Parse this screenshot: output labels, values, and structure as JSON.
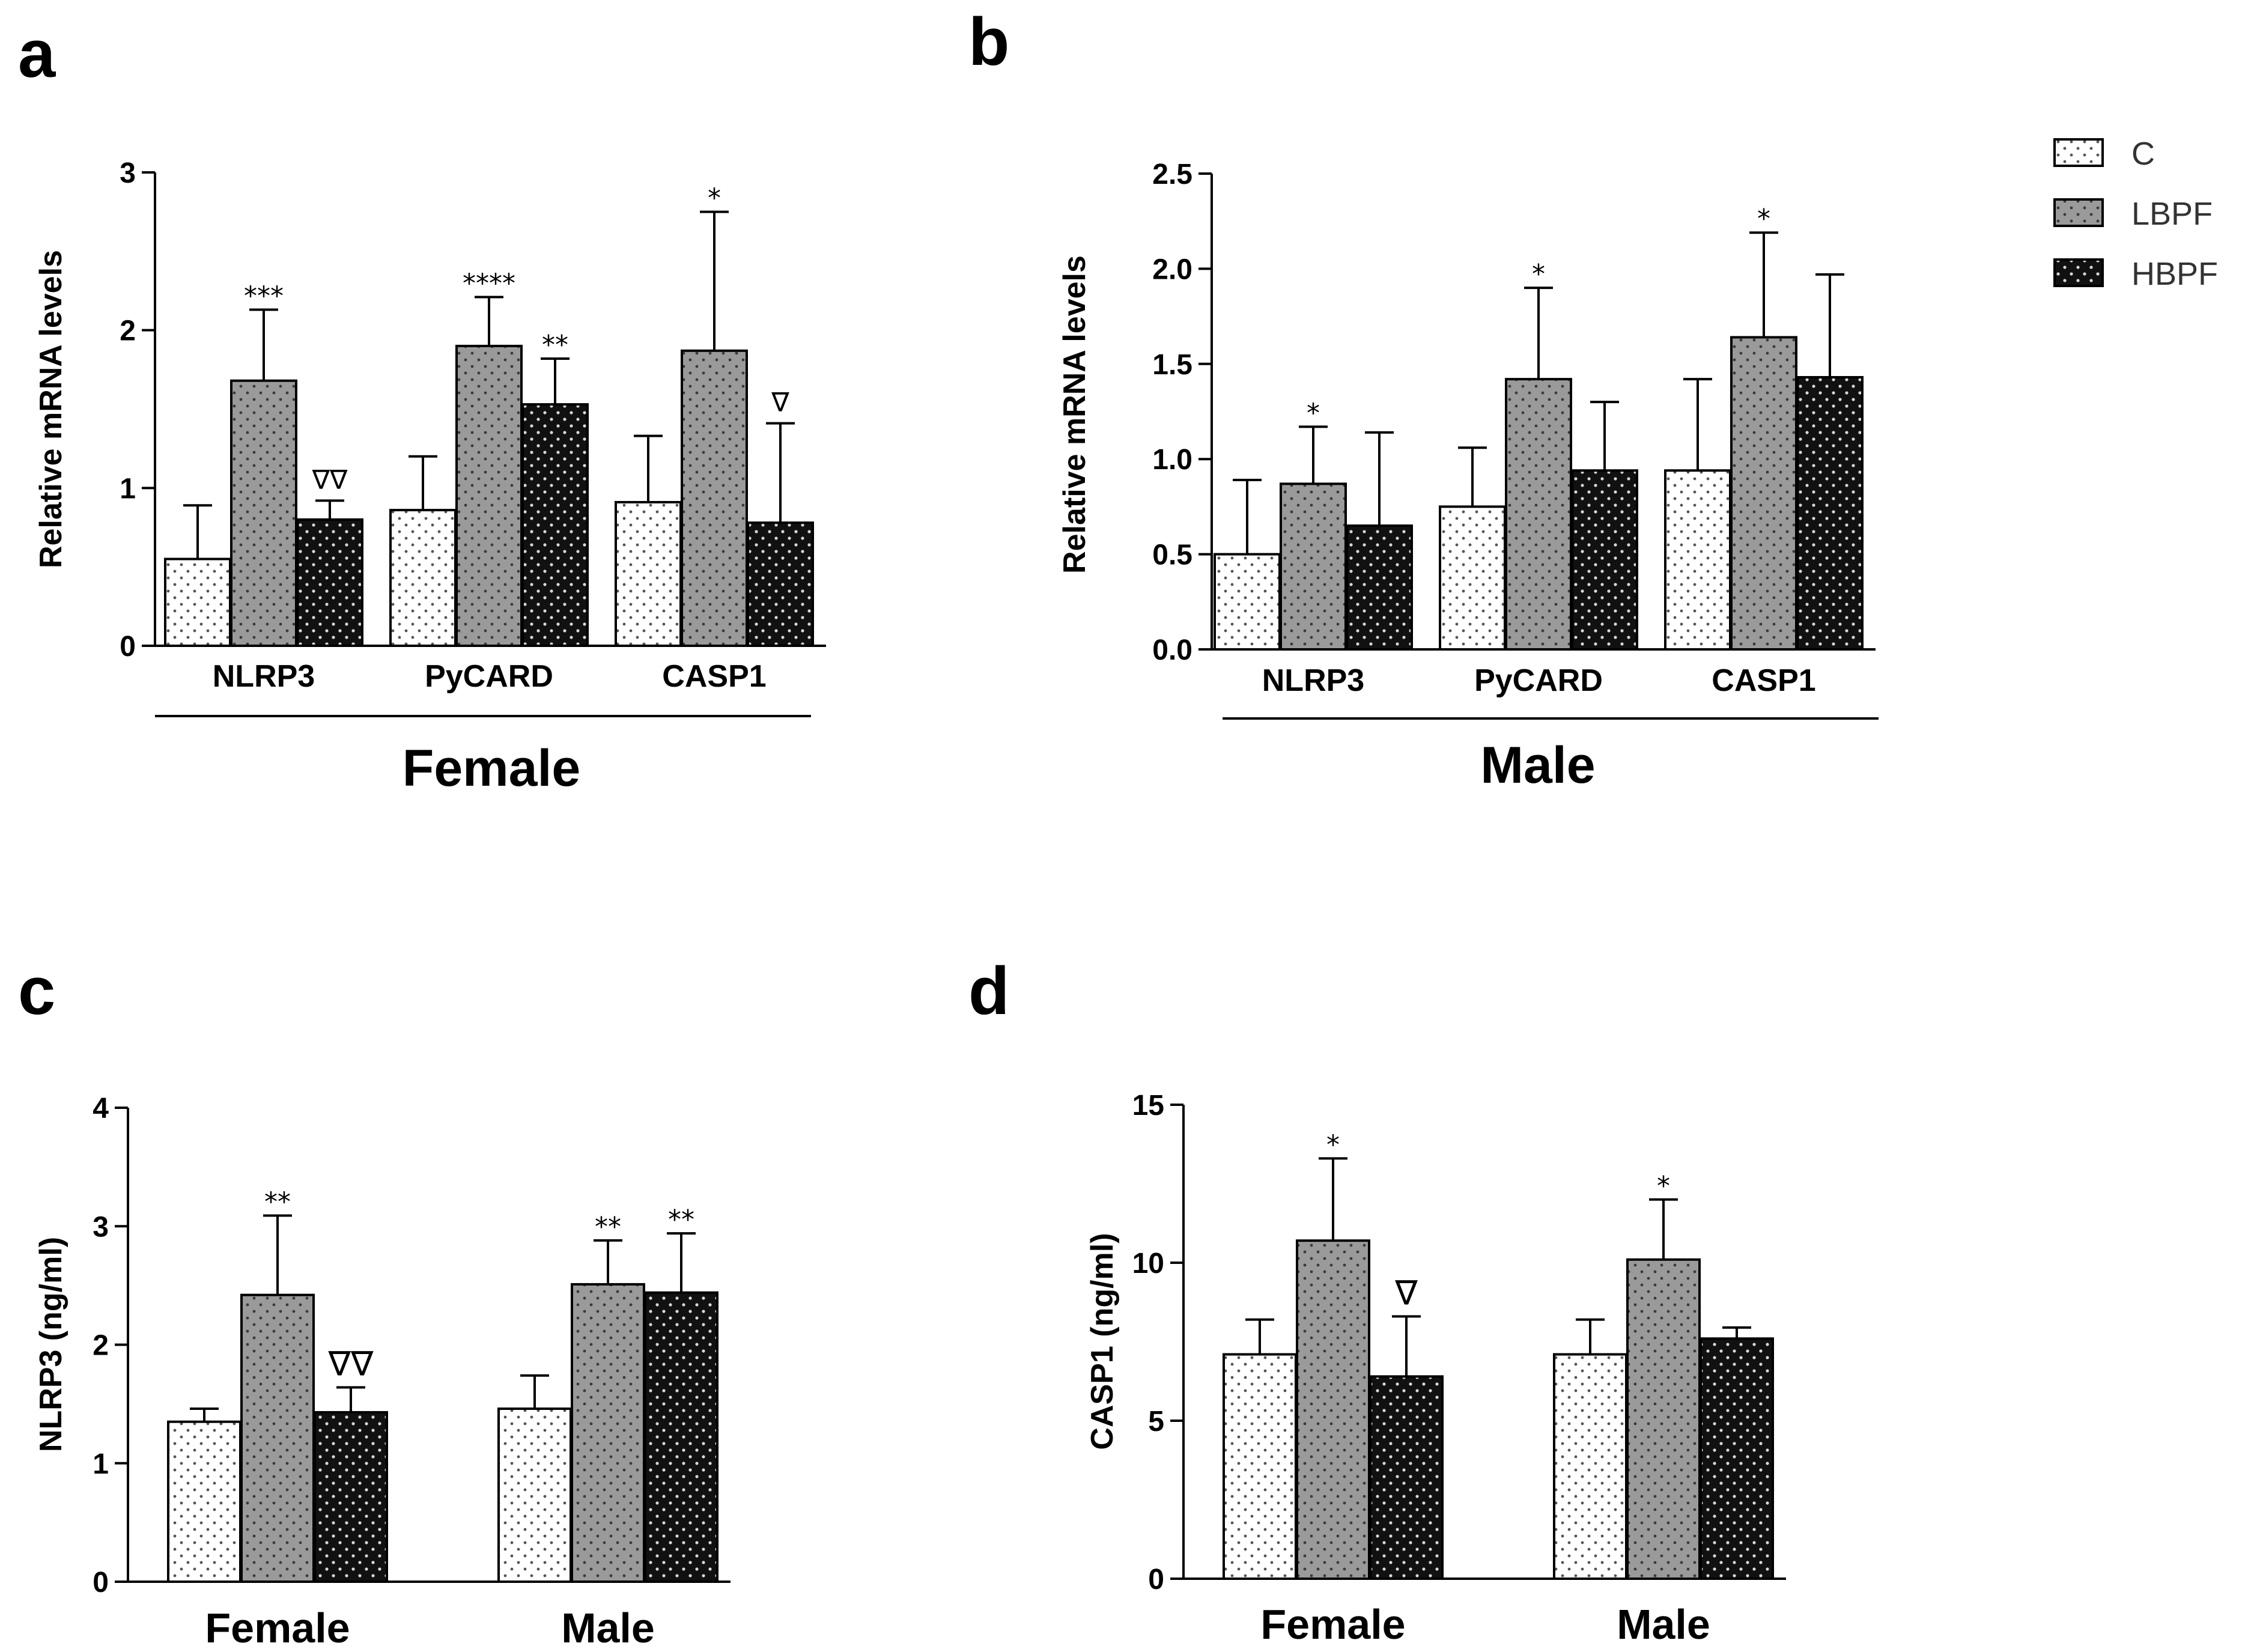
{
  "legend": [
    {
      "key": "C",
      "label": "C"
    },
    {
      "key": "LBPF",
      "label": "LBPF"
    },
    {
      "key": "HBPF",
      "label": "HBPF"
    }
  ],
  "chart_data": [
    {
      "panel": "a",
      "type": "bar",
      "ylabel": "Relative mRNA levels",
      "ylim": [
        0,
        3
      ],
      "yticks": [
        "0",
        "1",
        "2",
        "3"
      ],
      "yticks_values": [
        0,
        1,
        2,
        3
      ],
      "categories": [
        "NLRP3",
        "PyCARD",
        "CASP1"
      ],
      "group_label": "Female",
      "series": [
        {
          "name": "C",
          "values": [
            0.55,
            0.86,
            0.91
          ],
          "errors": [
            0.34,
            0.34,
            0.42
          ],
          "sig": [
            "",
            "",
            ""
          ]
        },
        {
          "name": "LBPF",
          "values": [
            1.68,
            1.9,
            1.87
          ],
          "errors": [
            0.45,
            0.31,
            0.88
          ],
          "sig": [
            "***",
            "****",
            "*"
          ]
        },
        {
          "name": "HBPF",
          "values": [
            0.8,
            1.53,
            0.78
          ],
          "errors": [
            0.12,
            0.29,
            0.63
          ],
          "sig": [
            "∇∇",
            "**",
            "∇"
          ]
        }
      ]
    },
    {
      "panel": "b",
      "type": "bar",
      "ylabel": "Relative mRNA levels",
      "ylim": [
        0,
        2.5
      ],
      "yticks": [
        "0.0",
        "0.5",
        "1.0",
        "1.5",
        "2.0",
        "2.5"
      ],
      "yticks_values": [
        0,
        0.5,
        1,
        1.5,
        2,
        2.5
      ],
      "categories": [
        "NLRP3",
        "PyCARD",
        "CASP1"
      ],
      "group_label": "Male",
      "series": [
        {
          "name": "C",
          "values": [
            0.5,
            0.75,
            0.94
          ],
          "errors": [
            0.39,
            0.31,
            0.48
          ],
          "sig": [
            "",
            "",
            ""
          ]
        },
        {
          "name": "LBPF",
          "values": [
            0.87,
            1.42,
            1.64
          ],
          "errors": [
            0.3,
            0.48,
            0.55
          ],
          "sig": [
            "*",
            "*",
            "*"
          ]
        },
        {
          "name": "HBPF",
          "values": [
            0.65,
            0.94,
            1.43
          ],
          "errors": [
            0.49,
            0.36,
            0.54
          ],
          "sig": [
            "",
            "",
            ""
          ]
        }
      ]
    },
    {
      "panel": "c",
      "type": "bar",
      "ylabel": "NLRP3 (ng/ml)",
      "ylim": [
        0,
        4
      ],
      "yticks": [
        "0",
        "1",
        "2",
        "3",
        "4"
      ],
      "yticks_values": [
        0,
        1,
        2,
        3,
        4
      ],
      "categories": [
        "Female",
        "Male"
      ],
      "group_label": "",
      "series": [
        {
          "name": "C",
          "values": [
            1.35,
            1.46
          ],
          "errors": [
            0.11,
            0.28
          ],
          "sig": [
            "",
            ""
          ]
        },
        {
          "name": "LBPF",
          "values": [
            2.42,
            2.51
          ],
          "errors": [
            0.67,
            0.37
          ],
          "sig": [
            "**",
            "**"
          ]
        },
        {
          "name": "HBPF",
          "values": [
            1.43,
            2.44
          ],
          "errors": [
            0.21,
            0.5
          ],
          "sig": [
            "∇∇",
            "**"
          ]
        }
      ]
    },
    {
      "panel": "d",
      "type": "bar",
      "ylabel": "CASP1 (ng/ml)",
      "ylim": [
        0,
        15
      ],
      "yticks": [
        "0",
        "5",
        "10",
        "15"
      ],
      "yticks_values": [
        0,
        5,
        10,
        15
      ],
      "categories": [
        "Female",
        "Male"
      ],
      "group_label": "",
      "series": [
        {
          "name": "C",
          "values": [
            7.1,
            7.1
          ],
          "errors": [
            1.1,
            1.1
          ],
          "sig": [
            "",
            ""
          ]
        },
        {
          "name": "LBPF",
          "values": [
            10.7,
            10.1
          ],
          "errors": [
            2.6,
            1.9
          ],
          "sig": [
            "*",
            "*"
          ]
        },
        {
          "name": "HBPF",
          "values": [
            6.4,
            7.6
          ],
          "errors": [
            1.9,
            0.35
          ],
          "sig": [
            "∇",
            ""
          ]
        }
      ]
    }
  ]
}
